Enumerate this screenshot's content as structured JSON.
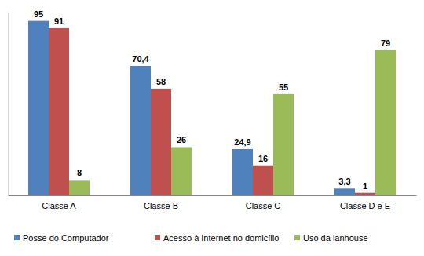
{
  "chart_data": {
    "type": "bar",
    "categories": [
      "Classe A",
      "Classe B",
      "Classe C",
      "Classe D e E"
    ],
    "series": [
      {
        "name": "Posse do Computador",
        "color": "#4f81bd",
        "values": [
          95,
          70.4,
          24.9,
          3.3
        ],
        "value_labels": [
          "95",
          "70,4",
          "24,9",
          "3,3"
        ]
      },
      {
        "name": "Acesso à Internet no domicílio",
        "color": "#c0504d",
        "values": [
          91,
          58,
          16,
          1
        ]
      },
      {
        "name": "Uso da lanhouse",
        "color": "#9bbb59",
        "values": [
          8,
          26,
          55,
          79
        ]
      }
    ],
    "ylim": [
      0,
      100
    ],
    "grid": false,
    "legend": "bottom",
    "data_labels": true,
    "tick_labels": "x"
  }
}
